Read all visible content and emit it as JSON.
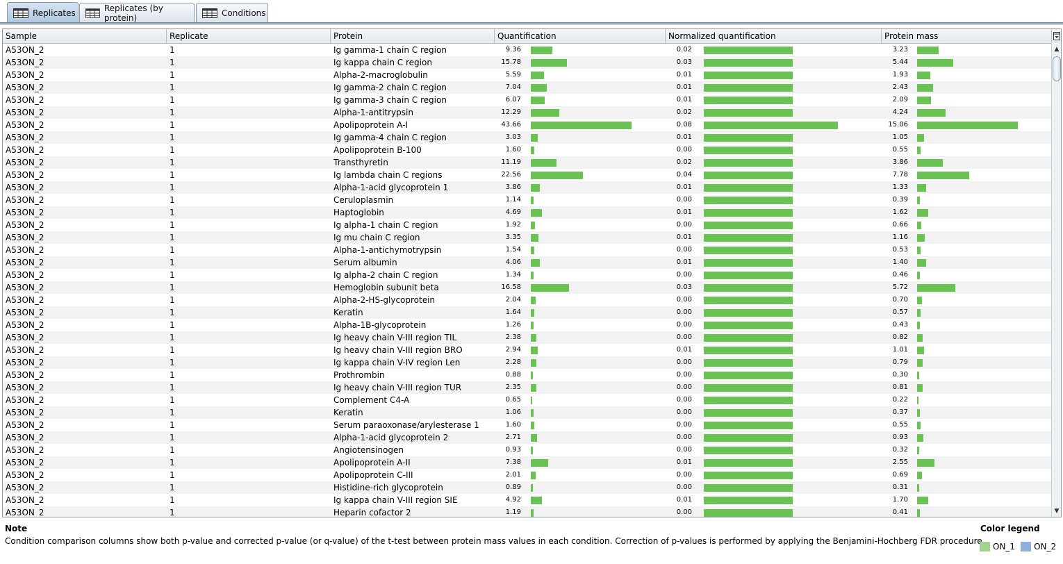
{
  "tabs": [
    {
      "label": "Replicates",
      "active": true
    },
    {
      "label": "Replicates (by protein)",
      "active": false
    },
    {
      "label": "Conditions",
      "active": false
    }
  ],
  "columns": [
    "Sample",
    "Replicate",
    "Protein",
    "Quantification",
    "Normalized quantification",
    "Protein mass"
  ],
  "rows": [
    [
      "A53ON_2",
      "1",
      "Ig gamma-1 chain C region",
      "9.36",
      "0.02",
      "3.23"
    ],
    [
      "A53ON_2",
      "1",
      "Ig kappa chain C region",
      "15.78",
      "0.03",
      "5.44"
    ],
    [
      "A53ON_2",
      "1",
      "Alpha-2-macroglobulin",
      "5.59",
      "0.01",
      "1.93"
    ],
    [
      "A53ON_2",
      "1",
      "Ig gamma-2 chain C region",
      "7.04",
      "0.01",
      "2.43"
    ],
    [
      "A53ON_2",
      "1",
      "Ig gamma-3 chain C region",
      "6.07",
      "0.01",
      "2.09"
    ],
    [
      "A53ON_2",
      "1",
      "Alpha-1-antitrypsin",
      "12.29",
      "0.02",
      "4.24"
    ],
    [
      "A53ON_2",
      "1",
      "Apolipoprotein A-I",
      "43.66",
      "0.08",
      "15.06"
    ],
    [
      "A53ON_2",
      "1",
      "Ig gamma-4 chain C region",
      "3.03",
      "0.01",
      "1.05"
    ],
    [
      "A53ON_2",
      "1",
      "Apolipoprotein B-100",
      "1.60",
      "0.00",
      "0.55"
    ],
    [
      "A53ON_2",
      "1",
      "Transthyretin",
      "11.19",
      "0.02",
      "3.86"
    ],
    [
      "A53ON_2",
      "1",
      "Ig lambda chain C regions",
      "22.56",
      "0.04",
      "7.78"
    ],
    [
      "A53ON_2",
      "1",
      "Alpha-1-acid glycoprotein 1",
      "3.86",
      "0.01",
      "1.33"
    ],
    [
      "A53ON_2",
      "1",
      "Ceruloplasmin",
      "1.14",
      "0.00",
      "0.39"
    ],
    [
      "A53ON_2",
      "1",
      "Haptoglobin",
      "4.69",
      "0.01",
      "1.62"
    ],
    [
      "A53ON_2",
      "1",
      "Ig alpha-1 chain C region",
      "1.92",
      "0.00",
      "0.66"
    ],
    [
      "A53ON_2",
      "1",
      "Ig mu chain C region",
      "3.35",
      "0.01",
      "1.16"
    ],
    [
      "A53ON_2",
      "1",
      "Alpha-1-antichymotrypsin",
      "1.54",
      "0.00",
      "0.53"
    ],
    [
      "A53ON_2",
      "1",
      "Serum albumin",
      "4.06",
      "0.01",
      "1.40"
    ],
    [
      "A53ON_2",
      "1",
      "Ig alpha-2 chain C region",
      "1.34",
      "0.00",
      "0.46"
    ],
    [
      "A53ON_2",
      "1",
      "Hemoglobin subunit beta",
      "16.58",
      "0.03",
      "5.72"
    ],
    [
      "A53ON_2",
      "1",
      "Alpha-2-HS-glycoprotein",
      "2.04",
      "0.00",
      "0.70"
    ],
    [
      "A53ON_2",
      "1",
      "Keratin",
      "1.64",
      "0.00",
      "0.57"
    ],
    [
      "A53ON_2",
      "1",
      "Alpha-1B-glycoprotein",
      "1.26",
      "0.00",
      "0.43"
    ],
    [
      "A53ON_2",
      "1",
      "Ig heavy chain V-III region TIL",
      "2.38",
      "0.00",
      "0.82"
    ],
    [
      "A53ON_2",
      "1",
      "Ig heavy chain V-III region BRO",
      "2.94",
      "0.01",
      "1.01"
    ],
    [
      "A53ON_2",
      "1",
      "Ig kappa chain V-IV region Len",
      "2.28",
      "0.00",
      "0.79"
    ],
    [
      "A53ON_2",
      "1",
      "Prothrombin",
      "0.88",
      "0.00",
      "0.30"
    ],
    [
      "A53ON_2",
      "1",
      "Ig heavy chain V-III region TUR",
      "2.35",
      "0.00",
      "0.81"
    ],
    [
      "A53ON_2",
      "1",
      "Complement C4-A",
      "0.65",
      "0.00",
      "0.22"
    ],
    [
      "A53ON_2",
      "1",
      "Keratin",
      "1.06",
      "0.00",
      "0.37"
    ],
    [
      "A53ON_2",
      "1",
      "Serum paraoxonase/arylesterase 1",
      "1.60",
      "0.00",
      "0.55"
    ],
    [
      "A53ON_2",
      "1",
      "Alpha-1-acid glycoprotein 2",
      "2.71",
      "0.00",
      "0.93"
    ],
    [
      "A53ON_2",
      "1",
      "Angiotensinogen",
      "0.93",
      "0.00",
      "0.32"
    ],
    [
      "A53ON_2",
      "1",
      "Apolipoprotein A-II",
      "7.38",
      "0.01",
      "2.55"
    ],
    [
      "A53ON_2",
      "1",
      "Apolipoprotein C-III",
      "2.01",
      "0.00",
      "0.69"
    ],
    [
      "A53ON_2",
      "1",
      "Histidine-rich glycoprotein",
      "0.89",
      "0.00",
      "0.31"
    ],
    [
      "A53ON_2",
      "1",
      "Ig kappa chain V-III region SIE",
      "4.92",
      "0.01",
      "1.70"
    ],
    [
      "A53ON_2",
      "1",
      "Heparin cofactor 2",
      "1.19",
      "0.00",
      "0.41"
    ]
  ],
  "note": {
    "title": "Note",
    "text": "Condition comparison columns show both p-value and corrected p-value (or q-value) of the t-test between protein mass values in each condition. Correction of p-values is performed by applying the Benjamini-Hochberg FDR procedure."
  },
  "legend": {
    "title": "Color legend",
    "items": [
      {
        "label": "ON_1",
        "color": "#a4d38f"
      },
      {
        "label": "ON_2",
        "color": "#8fb0dc"
      }
    ]
  },
  "colors": {
    "bar": "#6ac253"
  }
}
